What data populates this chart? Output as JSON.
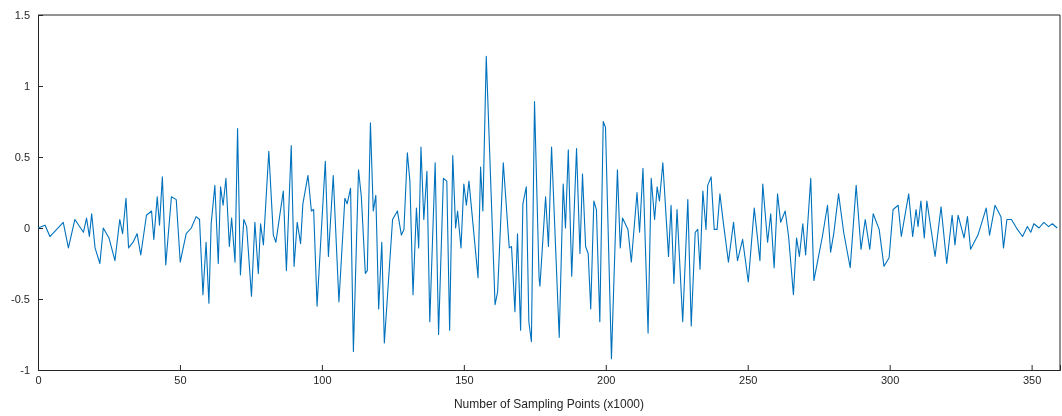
{
  "chart_data": {
    "type": "line",
    "xlabel": "Number of Sampling Points (x1000)",
    "xlim": [
      0,
      360
    ],
    "xticks": [
      0,
      50,
      100,
      150,
      200,
      250,
      300,
      350
    ],
    "ylim": [
      -1,
      1.5
    ],
    "yticks": [
      -1,
      -0.5,
      0,
      0.5,
      1,
      1.5
    ],
    "grid": false,
    "marker": "none",
    "line_style": "solid",
    "series": [
      {
        "color": "#0072bd",
        "x": [
          0,
          2.5,
          4.2,
          8.9,
          10.7,
          13,
          16,
          17.1,
          18.1,
          18.9,
          20.1,
          21.8,
          23,
          25,
          27.1,
          28.8,
          29.8,
          31,
          31.9,
          33.5,
          34.9,
          36.2,
          38.2,
          40,
          40.8,
          42,
          42.8,
          43.8,
          45,
          47,
          48.7,
          50.1,
          52.2,
          54,
          55.7,
          56.9,
          58.1,
          59.2,
          60.2,
          61,
          62.3,
          63.5,
          64.3,
          65.2,
          66.2,
          67.4,
          68.2,
          69.4,
          70.3,
          71.3,
          72.5,
          73.5,
          75.2,
          76.4,
          77.6,
          78.4,
          79.4,
          81.3,
          82.9,
          83.8,
          86.4,
          87.5,
          89.2,
          90.2,
          91.3,
          92.5,
          93.3,
          95.1,
          96.3,
          97.1,
          98.3,
          101.2,
          102.3,
          104,
          106,
          108.1,
          108.9,
          110.1,
          111.1,
          112.9,
          113.9,
          115.3,
          116,
          117.1,
          118.1,
          119,
          120,
          121.1,
          122,
          124.9,
          126.6,
          128,
          128.9,
          130.1,
          131,
          132.1,
          133.3,
          134.1,
          134.9,
          135.9,
          137,
          138,
          139.9,
          141.1,
          142.8,
          144,
          145,
          146.1,
          147.1,
          147.8,
          149,
          150,
          150.9,
          151.8,
          155,
          155.9,
          156.7,
          157.9,
          161,
          161.9,
          163.9,
          166,
          166.8,
          168,
          168.9,
          170,
          170.8,
          172,
          172.9,
          173.8,
          174.9,
          176.5,
          176.8,
          178.8,
          179.8,
          180.9,
          183.6,
          185,
          185.8,
          186.8,
          188,
          189.7,
          190.9,
          191.8,
          192.9,
          193.8,
          194.7,
          195.8,
          196.7,
          197.9,
          199.1,
          199.9,
          202,
          204.1,
          205.1,
          205.9,
          207.8,
          209,
          211,
          211.9,
          213.1,
          214.9,
          216,
          217.2,
          218.1,
          218.9,
          220.1,
          222.1,
          223,
          224,
          225.1,
          227.1,
          228.9,
          230.1,
          231.5,
          232.4,
          233.2,
          234.2,
          235.3,
          235.9,
          237.1,
          238.2,
          239.2,
          240.2,
          241.4,
          243.2,
          245,
          246.4,
          248.2,
          250.2,
          252.3,
          254.3,
          255.3,
          257,
          258.1,
          259.3,
          260.5,
          261.6,
          263.2,
          264.4,
          266.1,
          267.2,
          268.2,
          269.4,
          270.4,
          272.2,
          273.3,
          276.3,
          278.1,
          279.2,
          280.3,
          282,
          283.8,
          286.1,
          288.2,
          289.9,
          291.4,
          293,
          294.2,
          296.3,
          298,
          299.8,
          301.2,
          303,
          304.1,
          306.7,
          308.1,
          309.3,
          310,
          311,
          312.2,
          313.1,
          316,
          318.1,
          320.1,
          322,
          323,
          324.1,
          326.2,
          327.4,
          328.5,
          331.1,
          334,
          335.2,
          337.1,
          339.2,
          340.1,
          341.3,
          342.9,
          345,
          346.8,
          348.5,
          349.7,
          350.8,
          352.6,
          354.3,
          356,
          357.3,
          359
        ],
        "values": [
          0,
          0.02,
          -0.06,
          0.04,
          -0.14,
          0.06,
          -0.03,
          0.07,
          -0.06,
          0.1,
          -0.14,
          -0.25,
          0,
          -0.07,
          -0.23,
          0.06,
          -0.04,
          0.21,
          -0.14,
          -0.1,
          -0.04,
          -0.19,
          0.09,
          0.12,
          -0.08,
          0.22,
          0.02,
          0.36,
          -0.26,
          0.22,
          0.2,
          -0.24,
          -0.04,
          0,
          0.08,
          0.06,
          -0.47,
          -0.1,
          -0.53,
          0.03,
          0.3,
          -0.25,
          0.29,
          0.16,
          0.35,
          -0.13,
          0.07,
          -0.24,
          0.7,
          -0.33,
          0.06,
          0.01,
          -0.48,
          0.04,
          -0.32,
          0.03,
          -0.12,
          0.54,
          -0.05,
          -0.1,
          0.26,
          -0.3,
          0.58,
          -0.27,
          0.04,
          -0.11,
          0.17,
          0.37,
          0.12,
          0.13,
          -0.55,
          0.47,
          -0.2,
          0.37,
          -0.52,
          0.21,
          0.17,
          0.28,
          -0.87,
          0.41,
          0.22,
          -0.32,
          -0.3,
          0.74,
          0.12,
          0.23,
          -0.57,
          -0.1,
          -0.81,
          0.06,
          0.12,
          -0.05,
          -0.01,
          0.53,
          0.33,
          -0.47,
          0.14,
          -0.14,
          0.57,
          0.06,
          0.4,
          -0.66,
          0.46,
          -0.75,
          0.35,
          0.33,
          -0.72,
          0.51,
          0,
          0.12,
          -0.14,
          0.31,
          0.16,
          0.33,
          -0.35,
          0.43,
          0.12,
          1.21,
          -0.54,
          -0.45,
          0.46,
          -0.14,
          -0.13,
          -0.59,
          -0.04,
          -0.72,
          0.17,
          0.29,
          -0.66,
          -0.8,
          0.89,
          -0.35,
          -0.41,
          0.22,
          -0.13,
          0.57,
          -0.77,
          0.31,
          0,
          0.55,
          -0.34,
          0.56,
          -0.18,
          0.38,
          -0.13,
          -0.18,
          -0.57,
          0.19,
          0.13,
          -0.66,
          0.75,
          0.71,
          -0.92,
          0.41,
          -0.14,
          0.07,
          -0.01,
          -0.24,
          0.25,
          -0.03,
          0.42,
          -0.74,
          0.35,
          0.06,
          0.29,
          0.19,
          0.46,
          -0.2,
          0.16,
          -0.39,
          0.13,
          -0.66,
          0.2,
          -0.69,
          -0.03,
          -0.01,
          -0.29,
          0.26,
          -0.01,
          0.3,
          0.36,
          -0.01,
          -0.01,
          0.24,
          0.04,
          -0.24,
          0.04,
          -0.23,
          -0.08,
          -0.38,
          0.14,
          -0.23,
          0.31,
          -0.1,
          0.1,
          -0.28,
          0.24,
          0.04,
          0.12,
          -0.06,
          -0.47,
          -0.07,
          -0.2,
          0.03,
          -0.19,
          0.35,
          -0.37,
          -0.06,
          0.16,
          -0.17,
          -0.04,
          0.24,
          -0.03,
          -0.28,
          0.3,
          -0.15,
          0.06,
          -0.15,
          0.1,
          -0.01,
          -0.27,
          -0.21,
          0.13,
          0.16,
          -0.06,
          0.24,
          -0.06,
          0.13,
          0.01,
          0.19,
          -0.07,
          0.19,
          -0.2,
          0.15,
          -0.25,
          0.09,
          -0.12,
          0.09,
          -0.07,
          0.08,
          -0.15,
          -0.05,
          0.14,
          -0.05,
          0.16,
          0.08,
          -0.14,
          0.06,
          0.06,
          -0.01,
          -0.06,
          0.01,
          -0.03,
          0.03,
          0,
          0.04,
          0.01,
          0.03,
          0
        ]
      }
    ]
  }
}
